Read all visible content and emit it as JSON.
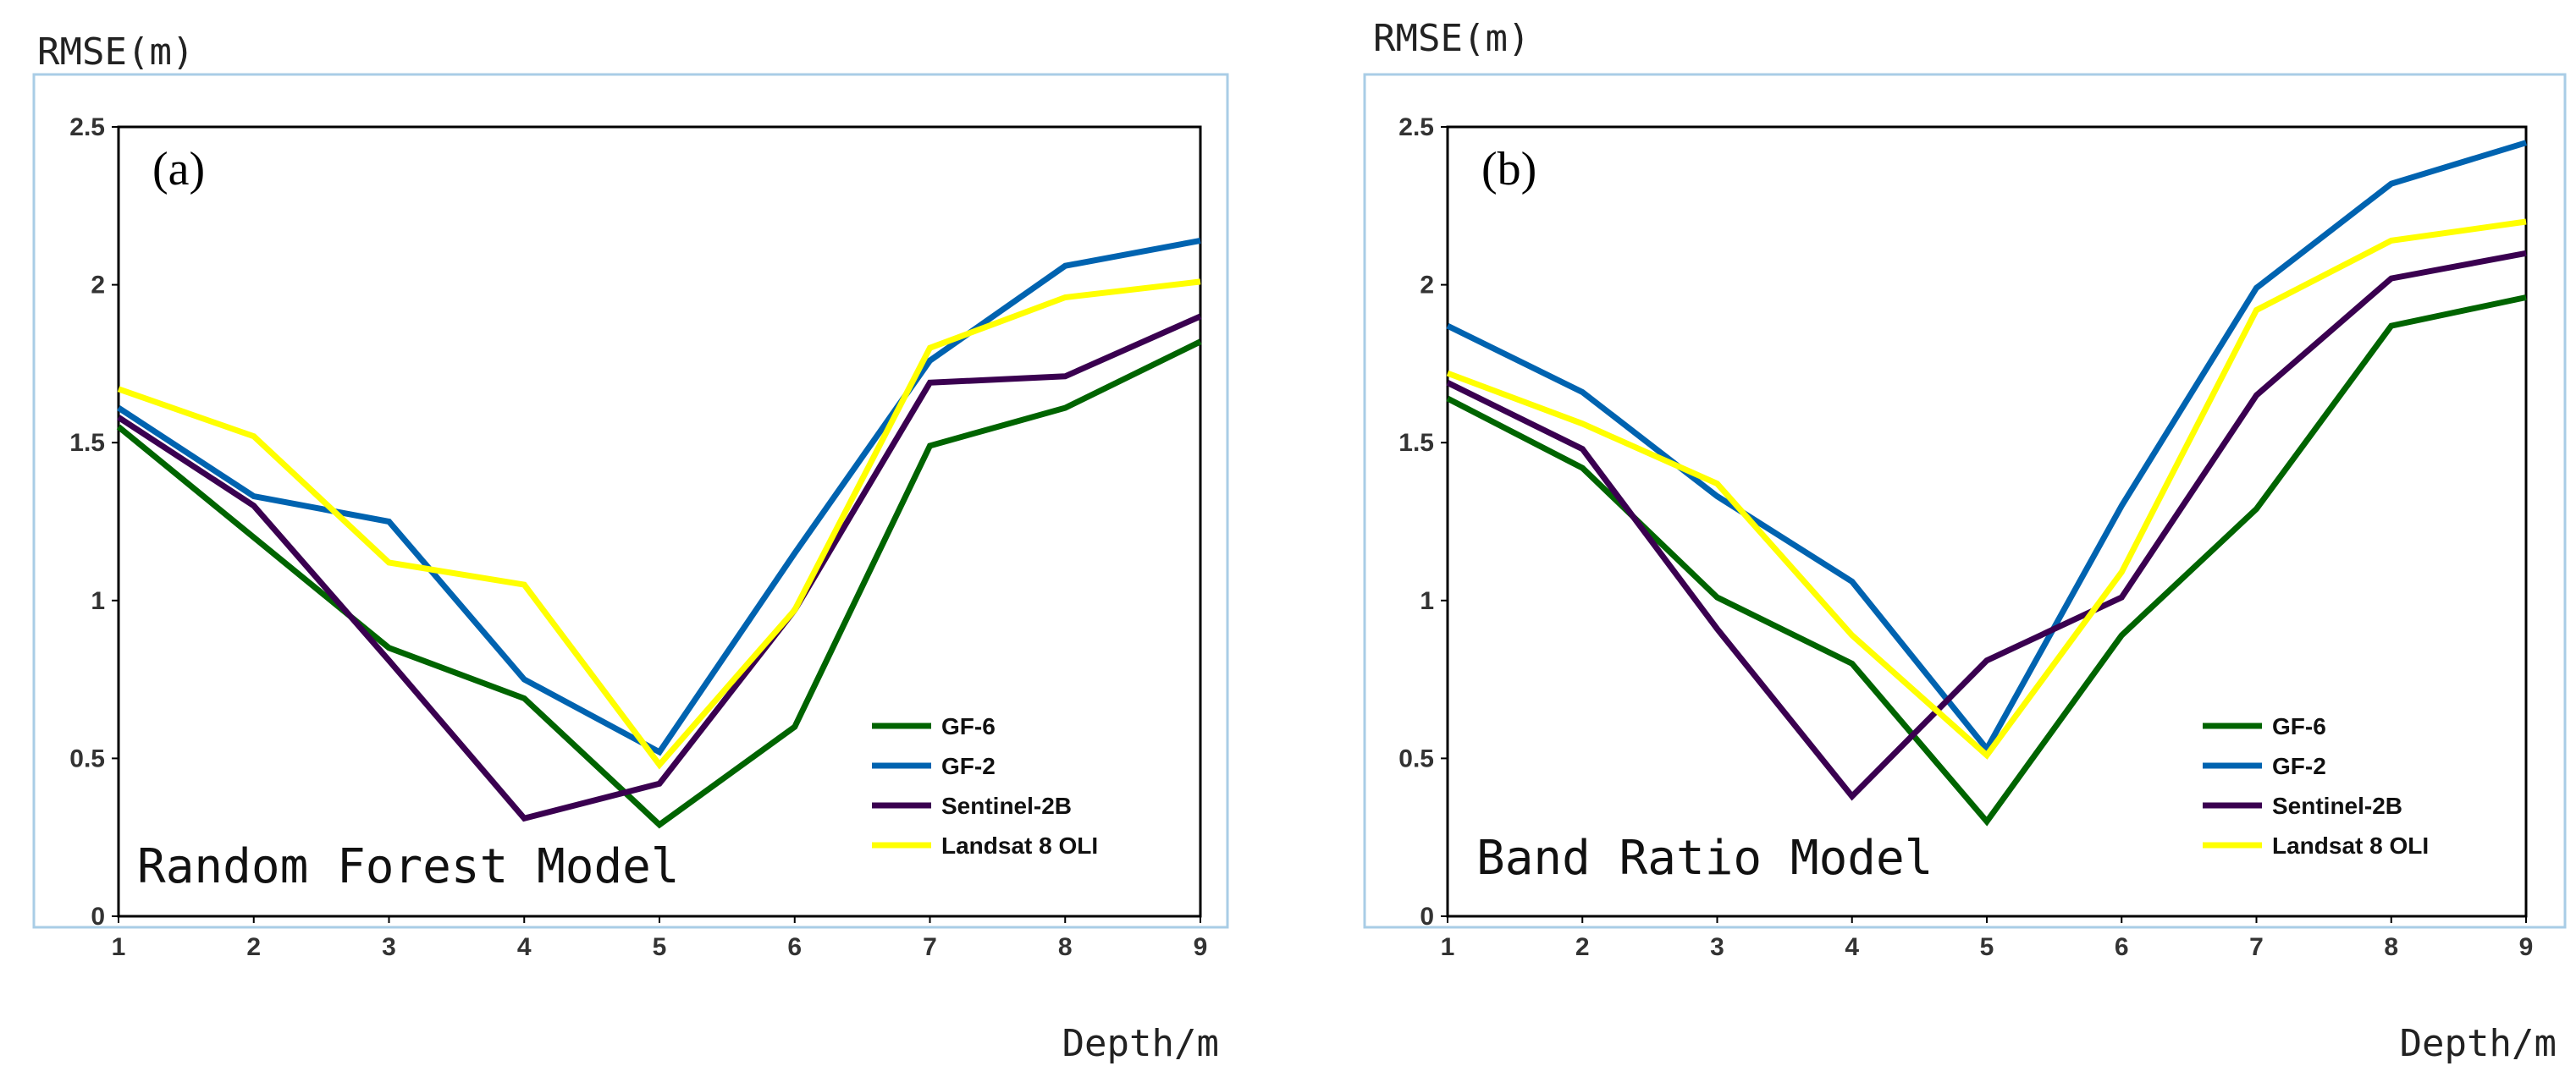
{
  "chart_data": [
    {
      "type": "line",
      "panel_label": "(a)",
      "model_name": "Random Forest Model",
      "ylabel": "RMSE(m)",
      "xlabel": "Depth/m",
      "x": [
        1,
        2,
        3,
        4,
        5,
        6,
        7,
        8,
        9
      ],
      "xlim": [
        1,
        9
      ],
      "ylim": [
        0,
        2.5
      ],
      "yticks": [
        "0",
        "0.5",
        "1",
        "1.5",
        "2",
        "2.5"
      ],
      "legend_position": "bottom-right",
      "series": [
        {
          "name": "GF-6",
          "color": "#006400",
          "values": [
            1.55,
            1.2,
            0.85,
            0.69,
            0.29,
            0.6,
            1.49,
            1.61,
            1.82
          ]
        },
        {
          "name": "GF-2",
          "color": "#0063B0",
          "values": [
            1.61,
            1.33,
            1.25,
            0.75,
            0.52,
            1.15,
            1.76,
            2.06,
            2.14
          ]
        },
        {
          "name": "Sentinel-2B",
          "color": "#3A0050",
          "values": [
            1.58,
            1.3,
            0.81,
            0.31,
            0.42,
            0.97,
            1.69,
            1.71,
            1.9
          ]
        },
        {
          "name": "Landsat 8 OLI",
          "color": "#FFFF00",
          "values": [
            1.67,
            1.52,
            1.12,
            1.05,
            0.48,
            0.97,
            1.8,
            1.96,
            2.01
          ]
        }
      ]
    },
    {
      "type": "line",
      "panel_label": "(b)",
      "model_name": "Band Ratio Model",
      "ylabel": "RMSE(m)",
      "xlabel": "Depth/m",
      "x": [
        1,
        2,
        3,
        4,
        5,
        6,
        7,
        8,
        9
      ],
      "xlim": [
        1,
        9
      ],
      "ylim": [
        0,
        2.5
      ],
      "yticks": [
        "0",
        "0.5",
        "1",
        "1.5",
        "2",
        "2.5"
      ],
      "legend_position": "bottom-right",
      "series": [
        {
          "name": "GF-6",
          "color": "#006400",
          "values": [
            1.64,
            1.42,
            1.01,
            0.8,
            0.3,
            0.89,
            1.29,
            1.87,
            1.96
          ]
        },
        {
          "name": "GF-2",
          "color": "#0063B0",
          "values": [
            1.87,
            1.66,
            1.33,
            1.06,
            0.53,
            1.3,
            1.99,
            2.32,
            2.45
          ]
        },
        {
          "name": "Sentinel-2B",
          "color": "#3A0050",
          "values": [
            1.69,
            1.48,
            0.91,
            0.38,
            0.81,
            1.01,
            1.65,
            2.02,
            2.1
          ]
        },
        {
          "name": "Landsat 8 OLI",
          "color": "#FFFF00",
          "values": [
            1.72,
            1.56,
            1.37,
            0.89,
            0.51,
            1.09,
            1.92,
            2.14,
            2.2
          ]
        }
      ]
    }
  ]
}
